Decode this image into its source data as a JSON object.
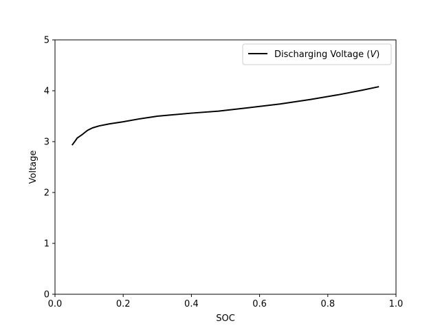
{
  "chart_data": {
    "type": "line",
    "xlabel": "SOC",
    "ylabel": "Voltage",
    "xlim": [
      0.0,
      1.0
    ],
    "ylim": [
      0,
      5
    ],
    "x_ticks": [
      "0.0",
      "0.2",
      "0.4",
      "0.6",
      "0.8",
      "1.0"
    ],
    "y_ticks": [
      "0",
      "1",
      "2",
      "3",
      "4",
      "5"
    ],
    "grid": false,
    "legend_position": "top-right",
    "legend": {
      "label_prefix": "Discharging Voltage (",
      "label_symbol": "V",
      "label_suffix": ")"
    },
    "series": [
      {
        "name": "Discharging Voltage (V)",
        "color": "#000000",
        "x": [
          0.05,
          0.06,
          0.065,
          0.08,
          0.095,
          0.11,
          0.13,
          0.16,
          0.2,
          0.25,
          0.3,
          0.35,
          0.4,
          0.48,
          0.56,
          0.66,
          0.75,
          0.83,
          0.9,
          0.95
        ],
        "y": [
          2.93,
          3.02,
          3.07,
          3.14,
          3.22,
          3.27,
          3.31,
          3.35,
          3.39,
          3.45,
          3.5,
          3.53,
          3.56,
          3.6,
          3.66,
          3.74,
          3.83,
          3.92,
          4.01,
          4.08
        ]
      }
    ]
  }
}
